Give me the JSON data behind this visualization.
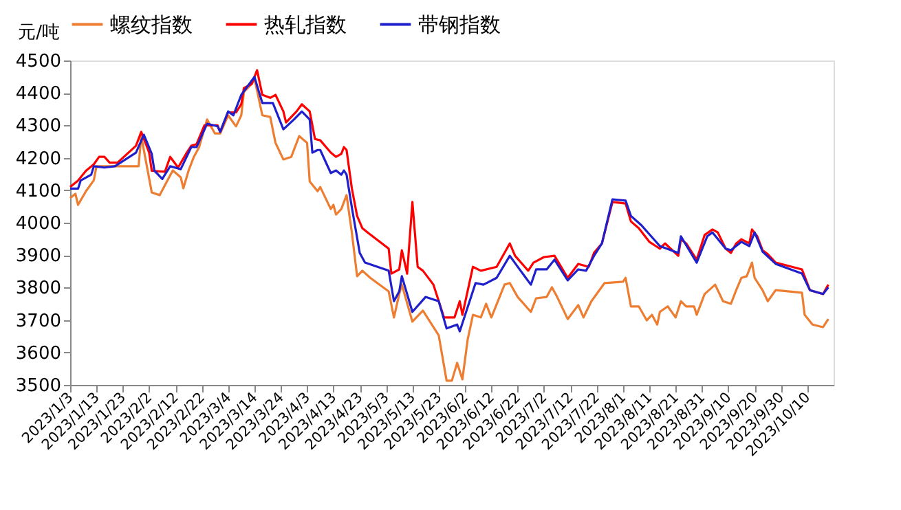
{
  "chart_data": {
    "type": "line",
    "ylabel": "元/吨",
    "legend": "top",
    "grid": false,
    "marker": "none",
    "line_style": "solid",
    "xlim": [
      "2023-01-03",
      "2023-10-20"
    ],
    "ylim": [
      3500,
      4500
    ],
    "yticks": [
      3500,
      3600,
      3700,
      3800,
      3900,
      4000,
      4100,
      4200,
      4300,
      4400,
      4500
    ],
    "xticks": [
      {
        "value": "2023-01-03",
        "label": "2023/1/3"
      },
      {
        "value": "2023-01-13",
        "label": "2023/1/13"
      },
      {
        "value": "2023-01-23",
        "label": "2023/1/23"
      },
      {
        "value": "2023-02-02",
        "label": "2023/2/2"
      },
      {
        "value": "2023-02-12",
        "label": "2023/2/12"
      },
      {
        "value": "2023-02-22",
        "label": "2023/2/22"
      },
      {
        "value": "2023-03-04",
        "label": "2023/3/4"
      },
      {
        "value": "2023-03-14",
        "label": "2023/3/14"
      },
      {
        "value": "2023-03-24",
        "label": "2023/3/24"
      },
      {
        "value": "2023-04-03",
        "label": "2023/4/3"
      },
      {
        "value": "2023-04-13",
        "label": "2023/4/13"
      },
      {
        "value": "2023-04-23",
        "label": "2023/4/23"
      },
      {
        "value": "2023-05-03",
        "label": "2023/5/3"
      },
      {
        "value": "2023-05-13",
        "label": "2023/5/13"
      },
      {
        "value": "2023-05-23",
        "label": "2023/5/23"
      },
      {
        "value": "2023-06-02",
        "label": "2023/6/2"
      },
      {
        "value": "2023-06-12",
        "label": "2023/6/12"
      },
      {
        "value": "2023-06-22",
        "label": "2023/6/22"
      },
      {
        "value": "2023-07-02",
        "label": "2023/7/2"
      },
      {
        "value": "2023-07-12",
        "label": "2023/7/12"
      },
      {
        "value": "2023-07-22",
        "label": "2023/7/22"
      },
      {
        "value": "2023-08-01",
        "label": "2023/8/1"
      },
      {
        "value": "2023-08-11",
        "label": "2023/8/11"
      },
      {
        "value": "2023-08-21",
        "label": "2023/8/21"
      },
      {
        "value": "2023-08-31",
        "label": "2023/8/31"
      },
      {
        "value": "2023-09-10",
        "label": "2023/9/10"
      },
      {
        "value": "2023-09-20",
        "label": "2023/9/20"
      },
      {
        "value": "2023-09-30",
        "label": "2023/9/30"
      },
      {
        "value": "2023-10-10",
        "label": "2023/10/10"
      }
    ],
    "series": [
      {
        "name": "螺纹指数",
        "color": "#ed7d31",
        "x": [
          "2023-01-03",
          "2023-01-05",
          "2023-01-06",
          "2023-01-09",
          "2023-01-12",
          "2023-01-13",
          "2023-01-29",
          "2023-01-30",
          "2023-02-03",
          "2023-02-06",
          "2023-02-09",
          "2023-02-11",
          "2023-02-14",
          "2023-02-15",
          "2023-02-17",
          "2023-02-19",
          "2023-02-21",
          "2023-02-24",
          "2023-02-27",
          "2023-03-01",
          "2023-03-04",
          "2023-03-07",
          "2023-03-09",
          "2023-03-10",
          "2023-03-13",
          "2023-03-14",
          "2023-03-17",
          "2023-03-20",
          "2023-03-22",
          "2023-03-25",
          "2023-03-28",
          "2023-03-31",
          "2023-04-03",
          "2023-04-04",
          "2023-04-07",
          "2023-04-08",
          "2023-04-12",
          "2023-04-13",
          "2023-04-14",
          "2023-04-16",
          "2023-04-18",
          "2023-04-20",
          "2023-04-22",
          "2023-04-24",
          "2023-04-27",
          "2023-05-04",
          "2023-05-06",
          "2023-05-08",
          "2023-05-09",
          "2023-05-13",
          "2023-05-17",
          "2023-05-23",
          "2023-05-26",
          "2023-05-28",
          "2023-05-30",
          "2023-06-01",
          "2023-06-03",
          "2023-06-05",
          "2023-06-08",
          "2023-06-10",
          "2023-06-12",
          "2023-06-17",
          "2023-06-19",
          "2023-06-22",
          "2023-06-27",
          "2023-06-29",
          "2023-07-03",
          "2023-07-05",
          "2023-07-07",
          "2023-07-11",
          "2023-07-15",
          "2023-07-17",
          "2023-07-20",
          "2023-07-25",
          "2023-08-01",
          "2023-08-02",
          "2023-08-04",
          "2023-08-07",
          "2023-08-10",
          "2023-08-12",
          "2023-08-14",
          "2023-08-15",
          "2023-08-18",
          "2023-08-21",
          "2023-08-23",
          "2023-08-25",
          "2023-08-28",
          "2023-08-29",
          "2023-09-01",
          "2023-09-05",
          "2023-09-08",
          "2023-09-11",
          "2023-09-13",
          "2023-09-15",
          "2023-09-17",
          "2023-09-19",
          "2023-09-20",
          "2023-09-23",
          "2023-09-25",
          "2023-09-28",
          "2023-10-08",
          "2023-10-09",
          "2023-10-12",
          "2023-10-16",
          "2023-10-18"
        ],
        "values": [
          4076,
          4089,
          4055,
          4097,
          4131,
          4174,
          4174,
          4267,
          4093,
          4085,
          4131,
          4161,
          4140,
          4106,
          4161,
          4203,
          4233,
          4318,
          4275,
          4275,
          4331,
          4297,
          4331,
          4403,
          4428,
          4445,
          4331,
          4326,
          4246,
          4195,
          4203,
          4267,
          4246,
          4127,
          4097,
          4110,
          4042,
          4055,
          4025,
          4042,
          4085,
          3970,
          3835,
          3852,
          3830,
          3788,
          3708,
          3780,
          3809,
          3695,
          3729,
          3653,
          3513,
          3513,
          3568,
          3517,
          3640,
          3716,
          3708,
          3750,
          3708,
          3809,
          3814,
          3771,
          3725,
          3767,
          3771,
          3801,
          3771,
          3703,
          3746,
          3708,
          3758,
          3814,
          3818,
          3830,
          3742,
          3742,
          3699,
          3716,
          3686,
          3725,
          3742,
          3708,
          3758,
          3742,
          3742,
          3716,
          3780,
          3809,
          3758,
          3750,
          3792,
          3830,
          3835,
          3877,
          3830,
          3792,
          3758,
          3792,
          3784,
          3716,
          3686,
          3678,
          3703
        ]
      },
      {
        "name": "热轧指数",
        "color": "#ff0000",
        "x": [
          "2023-01-03",
          "2023-01-06",
          "2023-01-09",
          "2023-01-12",
          "2023-01-14",
          "2023-01-16",
          "2023-01-18",
          "2023-01-21",
          "2023-01-28",
          "2023-01-30",
          "2023-02-02",
          "2023-02-03",
          "2023-02-08",
          "2023-02-10",
          "2023-02-13",
          "2023-02-16",
          "2023-02-18",
          "2023-02-20",
          "2023-02-23",
          "2023-02-28",
          "2023-03-01",
          "2023-03-04",
          "2023-03-07",
          "2023-03-09",
          "2023-03-10",
          "2023-03-13",
          "2023-03-15",
          "2023-03-17",
          "2023-03-20",
          "2023-03-22",
          "2023-03-25",
          "2023-03-26",
          "2023-03-30",
          "2023-04-01",
          "2023-04-04",
          "2023-04-06",
          "2023-04-08",
          "2023-04-12",
          "2023-04-14",
          "2023-04-16",
          "2023-04-17",
          "2023-04-18",
          "2023-04-20",
          "2023-04-22",
          "2023-04-24",
          "2023-04-26",
          "2023-05-04",
          "2023-05-05",
          "2023-05-08",
          "2023-05-09",
          "2023-05-11",
          "2023-05-13",
          "2023-05-15",
          "2023-05-17",
          "2023-05-21",
          "2023-05-25",
          "2023-05-29",
          "2023-05-31",
          "2023-06-01",
          "2023-06-05",
          "2023-06-08",
          "2023-06-14",
          "2023-06-19",
          "2023-06-21",
          "2023-06-26",
          "2023-06-28",
          "2023-07-02",
          "2023-07-06",
          "2023-07-11",
          "2023-07-15",
          "2023-07-19",
          "2023-07-21",
          "2023-07-24",
          "2023-07-28",
          "2023-08-02",
          "2023-08-04",
          "2023-08-07",
          "2023-08-11",
          "2023-08-15",
          "2023-08-17",
          "2023-08-22",
          "2023-08-23",
          "2023-08-25",
          "2023-08-29",
          "2023-09-01",
          "2023-09-04",
          "2023-09-06",
          "2023-09-09",
          "2023-09-11",
          "2023-09-13",
          "2023-09-15",
          "2023-09-18",
          "2023-09-19",
          "2023-09-21",
          "2023-09-23",
          "2023-09-25",
          "2023-09-28",
          "2023-10-08",
          "2023-10-11",
          "2023-10-16",
          "2023-10-18"
        ],
        "values": [
          4110,
          4130,
          4160,
          4180,
          4203,
          4203,
          4185,
          4185,
          4237,
          4280,
          4216,
          4160,
          4157,
          4203,
          4170,
          4212,
          4237,
          4242,
          4300,
          4300,
          4280,
          4340,
          4340,
          4365,
          4415,
          4428,
          4470,
          4394,
          4385,
          4394,
          4343,
          4309,
          4343,
          4365,
          4343,
          4258,
          4254,
          4216,
          4203,
          4212,
          4233,
          4224,
          4106,
          4021,
          3983,
          3970,
          3920,
          3843,
          3856,
          3915,
          3843,
          4064,
          3864,
          3852,
          3809,
          3708,
          3708,
          3758,
          3716,
          3864,
          3852,
          3864,
          3936,
          3898,
          3852,
          3877,
          3894,
          3898,
          3830,
          3873,
          3864,
          3907,
          3936,
          4064,
          4059,
          4004,
          3983,
          3941,
          3920,
          3936,
          3898,
          3949,
          3936,
          3886,
          3962,
          3979,
          3970,
          3920,
          3907,
          3936,
          3949,
          3936,
          3979,
          3958,
          3915,
          3903,
          3877,
          3856,
          3792,
          3780,
          3809
        ]
      },
      {
        "name": "带钢指数",
        "color": "#1f1fcc",
        "x": [
          "2023-01-03",
          "2023-01-06",
          "2023-01-07",
          "2023-01-11",
          "2023-01-12",
          "2023-01-16",
          "2023-01-20",
          "2023-01-28",
          "2023-01-31",
          "2023-02-03",
          "2023-02-04",
          "2023-02-07",
          "2023-02-10",
          "2023-02-14",
          "2023-02-18",
          "2023-02-20",
          "2023-02-24",
          "2023-02-28",
          "2023-03-01",
          "2023-03-04",
          "2023-03-06",
          "2023-03-09",
          "2023-03-14",
          "2023-03-17",
          "2023-03-21",
          "2023-03-25",
          "2023-03-29",
          "2023-04-01",
          "2023-04-04",
          "2023-04-05",
          "2023-04-07",
          "2023-04-08",
          "2023-04-12",
          "2023-04-14",
          "2023-04-16",
          "2023-04-17",
          "2023-04-18",
          "2023-04-20",
          "2023-04-23",
          "2023-04-25",
          "2023-05-04",
          "2023-05-06",
          "2023-05-08",
          "2023-05-09",
          "2023-05-13",
          "2023-05-18",
          "2023-05-23",
          "2023-05-26",
          "2023-05-30",
          "2023-05-31",
          "2023-06-06",
          "2023-06-09",
          "2023-06-14",
          "2023-06-19",
          "2023-06-22",
          "2023-06-27",
          "2023-06-29",
          "2023-07-03",
          "2023-07-06",
          "2023-07-11",
          "2023-07-15",
          "2023-07-18",
          "2023-07-21",
          "2023-07-24",
          "2023-07-28",
          "2023-08-02",
          "2023-08-04",
          "2023-08-08",
          "2023-08-15",
          "2023-08-22",
          "2023-08-23",
          "2023-08-29",
          "2023-09-02",
          "2023-09-04",
          "2023-09-09",
          "2023-09-11",
          "2023-09-15",
          "2023-09-18",
          "2023-09-20",
          "2023-09-23",
          "2023-09-28",
          "2023-10-08",
          "2023-10-11",
          "2023-10-16",
          "2023-10-18"
        ],
        "values": [
          4105,
          4105,
          4130,
          4148,
          4174,
          4170,
          4174,
          4216,
          4271,
          4212,
          4160,
          4135,
          4174,
          4165,
          4233,
          4233,
          4305,
          4297,
          4280,
          4343,
          4331,
          4394,
          4449,
          4369,
          4369,
          4288,
          4318,
          4343,
          4318,
          4216,
          4224,
          4224,
          4153,
          4161,
          4148,
          4161,
          4148,
          4047,
          3907,
          3877,
          3852,
          3758,
          3788,
          3835,
          3725,
          3771,
          3758,
          3674,
          3686,
          3665,
          3814,
          3809,
          3830,
          3898,
          3864,
          3809,
          3856,
          3856,
          3886,
          3822,
          3856,
          3852,
          3898,
          3936,
          4072,
          4068,
          4021,
          3992,
          3928,
          3907,
          3958,
          3877,
          3958,
          3970,
          3920,
          3915,
          3941,
          3928,
          3970,
          3911,
          3873,
          3843,
          3792,
          3780,
          3801
        ]
      }
    ]
  }
}
